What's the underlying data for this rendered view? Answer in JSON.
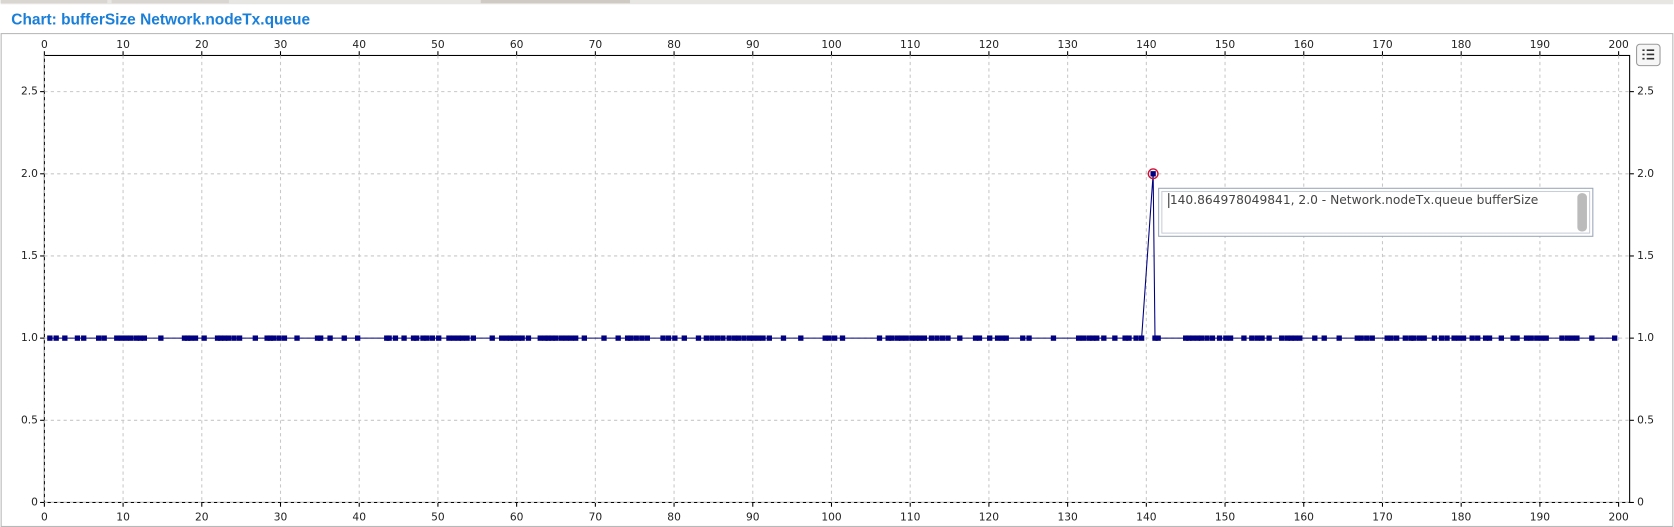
{
  "chart_data": {
    "type": "line",
    "title": "Chart: bufferSize Network.nodeTx.queue",
    "tooltip": "140.864978049841, 2.0 - Network.nodeTx.queue bufferSize",
    "color": "#000080",
    "highlight_color": "#d01030",
    "grid": true,
    "xlim": [
      0,
      201.4
    ],
    "xticks": [
      0,
      10,
      20,
      30,
      40,
      50,
      60,
      70,
      80,
      90,
      100,
      110,
      120,
      130,
      140,
      150,
      160,
      170,
      180,
      190,
      200
    ],
    "ylim": [
      0,
      2.72
    ],
    "yticks": [
      0,
      0.5,
      {
        "value": 1,
        "label": "1.0"
      },
      1.5,
      {
        "value": 2,
        "label": "2.0"
      },
      2.5
    ],
    "x": [
      0.7,
      1.5,
      2.6,
      4.2,
      5.0,
      6.9,
      7.6,
      9.2,
      9.8,
      10.4,
      11.0,
      11.7,
      12.2,
      12.7,
      14.8,
      17.8,
      18.2,
      18.6,
      19.2,
      20.3,
      22.0,
      22.4,
      22.9,
      23.4,
      24.1,
      24.8,
      26.8,
      28.3,
      28.7,
      29.1,
      29.8,
      30.5,
      32.1,
      34.7,
      35.1,
      36.3,
      38.1,
      39.8,
      43.5,
      43.8,
      44.6,
      45.7,
      46.9,
      47.3,
      48.1,
      48.6,
      49.3,
      50.1,
      51.4,
      52.0,
      52.6,
      53.1,
      53.7,
      54.5,
      56.9,
      58.1,
      58.7,
      59.2,
      59.6,
      60.2,
      60.7,
      61.5,
      63.0,
      63.6,
      64.0,
      64.5,
      65.0,
      65.7,
      66.3,
      66.9,
      67.5,
      68.6,
      71.1,
      72.9,
      74.1,
      74.5,
      75.2,
      75.9,
      76.6,
      78.6,
      79.3,
      80.1,
      81.3,
      83.1,
      84.1,
      84.8,
      85.5,
      86.2,
      87.0,
      87.7,
      88.2,
      88.9,
      89.6,
      90.1,
      90.7,
      91.3,
      92.1,
      93.9,
      96.1,
      99.2,
      99.7,
      100.4,
      101.4,
      106.1,
      107.2,
      107.7,
      108.4,
      108.9,
      109.5,
      110.2,
      110.7,
      111.2,
      111.8,
      112.7,
      113.4,
      114.1,
      114.8,
      116.3,
      118.3,
      118.8,
      120.1,
      121.1,
      121.7,
      122.2,
      124.3,
      125.1,
      128.2,
      131.4,
      132.0,
      132.7,
      133.2,
      133.7,
      134.6,
      136.0,
      137.3,
      137.8,
      138.7,
      139.4,
      140.864978049841,
      141.1,
      141.5,
      145.0,
      145.4,
      145.9,
      146.5,
      147.0,
      147.7,
      148.4,
      149.3,
      150.1,
      150.7,
      152.4,
      153.4,
      154.1,
      154.7,
      155.6,
      157.2,
      157.9,
      158.4,
      158.9,
      159.5,
      161.4,
      162.6,
      164.5,
      166.8,
      167.3,
      168.0,
      168.7,
      170.6,
      171.1,
      171.8,
      172.9,
      173.6,
      174.0,
      174.7,
      175.3,
      176.6,
      177.5,
      178.2,
      179.1,
      179.7,
      180.3,
      181.4,
      182.1,
      183.1,
      183.6,
      185.1,
      186.6,
      187.1,
      188.3,
      188.9,
      189.6,
      190.2,
      190.8,
      192.8,
      193.5,
      194.1,
      194.7,
      196.6,
      199.5
    ],
    "values": [
      1,
      1,
      1,
      1,
      1,
      1,
      1,
      1,
      1,
      1,
      1,
      1,
      1,
      1,
      1,
      1,
      1,
      1,
      1,
      1,
      1,
      1,
      1,
      1,
      1,
      1,
      1,
      1,
      1,
      1,
      1,
      1,
      1,
      1,
      1,
      1,
      1,
      1,
      1,
      1,
      1,
      1,
      1,
      1,
      1,
      1,
      1,
      1,
      1,
      1,
      1,
      1,
      1,
      1,
      1,
      1,
      1,
      1,
      1,
      1,
      1,
      1,
      1,
      1,
      1,
      1,
      1,
      1,
      1,
      1,
      1,
      1,
      1,
      1,
      1,
      1,
      1,
      1,
      1,
      1,
      1,
      1,
      1,
      1,
      1,
      1,
      1,
      1,
      1,
      1,
      1,
      1,
      1,
      1,
      1,
      1,
      1,
      1,
      1,
      1,
      1,
      1,
      1,
      1,
      1,
      1,
      1,
      1,
      1,
      1,
      1,
      1,
      1,
      1,
      1,
      1,
      1,
      1,
      1,
      1,
      1,
      1,
      1,
      1,
      1,
      1,
      1,
      1,
      1,
      1,
      1,
      1,
      1,
      1,
      1,
      1,
      1,
      1,
      2,
      1,
      1,
      1,
      1,
      1,
      1,
      1,
      1,
      1,
      1,
      1,
      1,
      1,
      1,
      1,
      1,
      1,
      1,
      1,
      1,
      1,
      1,
      1,
      1,
      1,
      1,
      1,
      1,
      1,
      1,
      1,
      1,
      1,
      1,
      1,
      1,
      1,
      1,
      1,
      1,
      1,
      1,
      1,
      1,
      1,
      1,
      1,
      1,
      1,
      1,
      1,
      1,
      1,
      1,
      1,
      1,
      1,
      1,
      1,
      1,
      1
    ]
  }
}
